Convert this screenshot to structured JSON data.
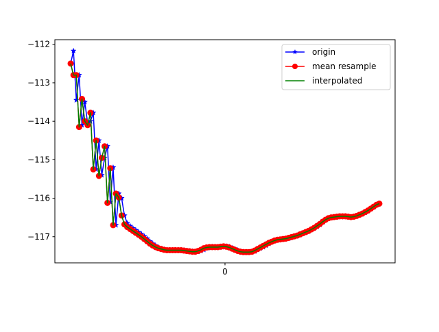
{
  "chart_data": {
    "type": "line",
    "title": "",
    "xlabel": "",
    "ylabel": "",
    "x_ticks": [
      "0"
    ],
    "y_ticks": [
      -112,
      -113,
      -114,
      -115,
      -116,
      -117
    ],
    "ylim": [
      -117.68,
      -111.88
    ],
    "grid": false,
    "legend_position": "top-right",
    "colors": {
      "origin": "#0000ff",
      "mean_resample": "#ff0000",
      "interpolated": "#008000"
    },
    "series": [
      {
        "name": "origin",
        "marker": "star",
        "values": [
          -112.5,
          -112.17,
          -113.45,
          -112.8,
          -114.1,
          -113.5,
          -114.05,
          -114.0,
          -113.78,
          -115.25,
          -114.5,
          -115.4,
          -114.95,
          -114.65,
          -116.1,
          -115.2,
          -116.7,
          -115.88,
          -116.0,
          -116.45,
          -116.65,
          -116.72,
          -116.78,
          -116.83,
          -116.88,
          -116.93,
          -116.99,
          -117.05,
          -117.12,
          -117.18,
          -117.23,
          -117.28,
          -117.31,
          -117.33,
          -117.34,
          -117.35,
          -117.35,
          -117.35,
          -117.35,
          -117.35,
          -117.35,
          -117.36,
          -117.37,
          -117.38,
          -117.39,
          -117.39,
          -117.37,
          -117.34,
          -117.3,
          -117.27,
          -117.26,
          -117.27,
          -117.27,
          -117.26,
          -117.25,
          -117.25,
          -117.26,
          -117.29,
          -117.32,
          -117.35,
          -117.38,
          -117.39,
          -117.4,
          -117.4,
          -117.4,
          -117.38,
          -117.34,
          -117.3,
          -117.27,
          -117.23,
          -117.18,
          -117.14,
          -117.11,
          -117.09,
          -117.07,
          -117.06,
          -117.05,
          -117.04,
          -117.02,
          -117.0,
          -116.98,
          -116.95,
          -116.92,
          -116.89,
          -116.86,
          -116.82,
          -116.78,
          -116.74,
          -116.69,
          -116.63,
          -116.56,
          -116.52,
          -116.5,
          -116.49,
          -116.48,
          -116.47,
          -116.47,
          -116.47,
          -116.48,
          -116.49,
          -116.48,
          -116.46,
          -116.44,
          -116.41,
          -116.37,
          -116.33,
          -116.28,
          -116.23,
          -116.18,
          -116.14
        ]
      },
      {
        "name": "mean resample",
        "marker": "circle",
        "values": [
          -112.5,
          -112.8,
          -112.8,
          -114.15,
          -113.42,
          -114.0,
          -114.1,
          -113.78,
          -115.25,
          -114.5,
          -115.42,
          -114.95,
          -114.65,
          -116.12,
          -115.22,
          -116.7,
          -115.88,
          -115.98,
          -116.45,
          -116.68,
          -116.75,
          -116.8,
          -116.85,
          -116.9,
          -116.95,
          -117.0,
          -117.06,
          -117.12,
          -117.18,
          -117.23,
          -117.27,
          -117.3,
          -117.32,
          -117.34,
          -117.35,
          -117.35,
          -117.35,
          -117.35,
          -117.35,
          -117.35,
          -117.36,
          -117.37,
          -117.38,
          -117.39,
          -117.39,
          -117.37,
          -117.34,
          -117.3,
          -117.28,
          -117.27,
          -117.27,
          -117.27,
          -117.27,
          -117.26,
          -117.25,
          -117.26,
          -117.28,
          -117.31,
          -117.34,
          -117.37,
          -117.39,
          -117.4,
          -117.4,
          -117.4,
          -117.39,
          -117.36,
          -117.32,
          -117.28,
          -117.24,
          -117.2,
          -117.16,
          -117.13,
          -117.1,
          -117.08,
          -117.07,
          -117.06,
          -117.05,
          -117.03,
          -117.01,
          -116.99,
          -116.97,
          -116.94,
          -116.91,
          -116.88,
          -116.85,
          -116.81,
          -116.77,
          -116.72,
          -116.67,
          -116.61,
          -116.56,
          -116.52,
          -116.5,
          -116.49,
          -116.48,
          -116.47,
          -116.47,
          -116.47,
          -116.48,
          -116.49,
          -116.48,
          -116.46,
          -116.43,
          -116.4,
          -116.36,
          -116.32,
          -116.27,
          -116.22,
          -116.17,
          -116.14
        ]
      },
      {
        "name": "interpolated",
        "marker": "none",
        "values": [
          -112.5,
          -112.8,
          -112.8,
          -114.15,
          -113.42,
          -114.0,
          -114.1,
          -113.78,
          -115.25,
          -114.5,
          -115.42,
          -114.95,
          -114.65,
          -116.12,
          -115.22,
          -116.7,
          -115.88,
          -115.98,
          -116.45,
          -116.68,
          -116.75,
          -116.8,
          -116.85,
          -116.9,
          -116.95,
          -117.0,
          -117.06,
          -117.12,
          -117.18,
          -117.23,
          -117.27,
          -117.3,
          -117.32,
          -117.34,
          -117.35,
          -117.35,
          -117.35,
          -117.35,
          -117.35,
          -117.35,
          -117.36,
          -117.37,
          -117.38,
          -117.39,
          -117.39,
          -117.37,
          -117.34,
          -117.3,
          -117.28,
          -117.27,
          -117.27,
          -117.27,
          -117.27,
          -117.26,
          -117.25,
          -117.26,
          -117.28,
          -117.31,
          -117.34,
          -117.37,
          -117.39,
          -117.4,
          -117.4,
          -117.4,
          -117.39,
          -117.36,
          -117.32,
          -117.28,
          -117.24,
          -117.2,
          -117.16,
          -117.13,
          -117.1,
          -117.08,
          -117.07,
          -117.06,
          -117.05,
          -117.03,
          -117.01,
          -116.99,
          -116.97,
          -116.94,
          -116.91,
          -116.88,
          -116.85,
          -116.81,
          -116.77,
          -116.72,
          -116.67,
          -116.61,
          -116.56,
          -116.52,
          -116.5,
          -116.49,
          -116.48,
          -116.47,
          -116.47,
          -116.47,
          -116.48,
          -116.49,
          -116.48,
          -116.46,
          -116.43,
          -116.4,
          -116.36,
          -116.32,
          -116.27,
          -116.22,
          -116.17,
          -116.14
        ]
      }
    ]
  }
}
